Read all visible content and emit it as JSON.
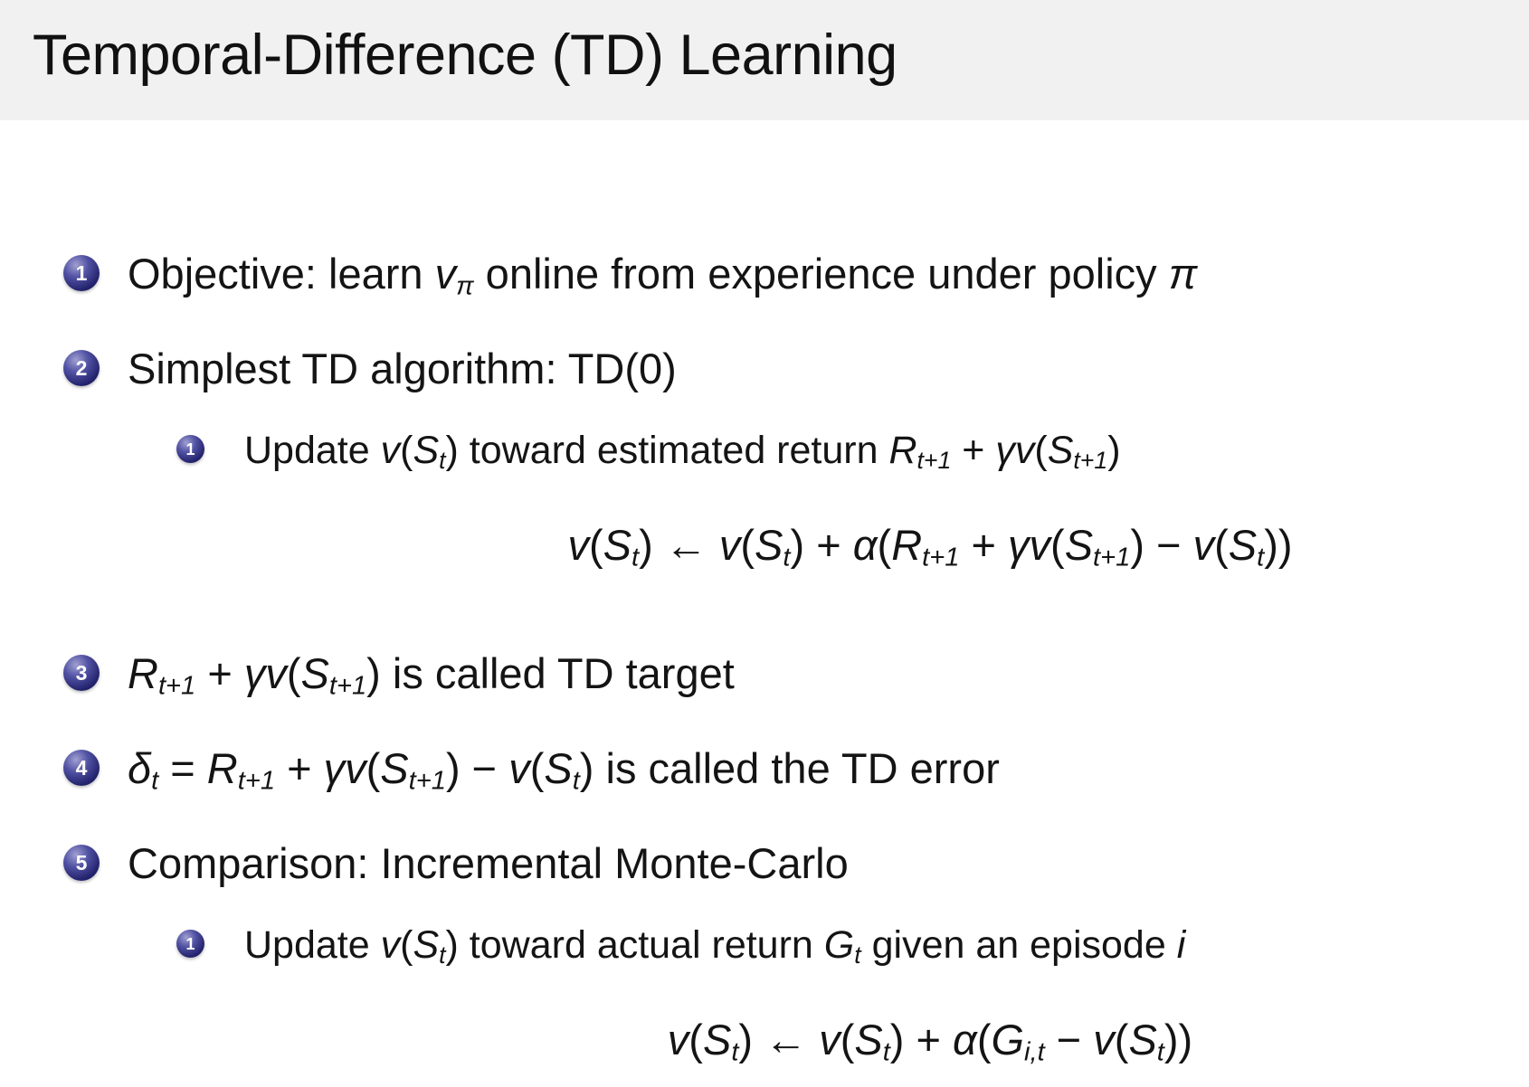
{
  "slide": {
    "title": "Temporal-Difference (TD) Learning"
  },
  "colors": {
    "header_bg": "#f1f1f1",
    "body_bg": "#ffffff",
    "text": "#141414",
    "badge_fill_dark": "#131347",
    "badge_fill_mid": "#23236e",
    "badge_fill_light": "#a0a0d2",
    "badge_text": "#ffffff"
  },
  "items": [
    {
      "type": "item",
      "level": 1,
      "badge": "1",
      "segments": [
        {
          "t": "Objective: learn ",
          "s": "r"
        },
        {
          "t": "v",
          "s": "i"
        },
        {
          "t": "π",
          "s": "isub"
        },
        {
          "t": " online from experience under policy ",
          "s": "r"
        },
        {
          "t": "π",
          "s": "i"
        }
      ]
    },
    {
      "type": "item",
      "level": 1,
      "badge": "2",
      "segments": [
        {
          "t": "Simplest TD algorithm: TD(0)",
          "s": "r"
        }
      ]
    },
    {
      "type": "item",
      "level": 2,
      "badge": "1",
      "segments": [
        {
          "t": "Update ",
          "s": "r"
        },
        {
          "t": "v",
          "s": "i"
        },
        {
          "t": "(",
          "s": "r"
        },
        {
          "t": "S",
          "s": "i"
        },
        {
          "t": "t",
          "s": "isub"
        },
        {
          "t": ")",
          "s": "r"
        },
        {
          "t": " toward estimated return ",
          "s": "r"
        },
        {
          "t": "R",
          "s": "i"
        },
        {
          "t": "t+1",
          "s": "isub"
        },
        {
          "t": " + ",
          "s": "r"
        },
        {
          "t": "γv",
          "s": "i"
        },
        {
          "t": "(",
          "s": "r"
        },
        {
          "t": "S",
          "s": "i"
        },
        {
          "t": "t+1",
          "s": "isub"
        },
        {
          "t": ")",
          "s": "r"
        }
      ]
    },
    {
      "type": "formula",
      "segments": [
        {
          "t": "v",
          "s": "i"
        },
        {
          "t": "(",
          "s": "r"
        },
        {
          "t": "S",
          "s": "i"
        },
        {
          "t": "t",
          "s": "isub"
        },
        {
          "t": ") ← ",
          "s": "r"
        },
        {
          "t": "v",
          "s": "i"
        },
        {
          "t": "(",
          "s": "r"
        },
        {
          "t": "S",
          "s": "i"
        },
        {
          "t": "t",
          "s": "isub"
        },
        {
          "t": ") + ",
          "s": "r"
        },
        {
          "t": "α",
          "s": "i"
        },
        {
          "t": "(",
          "s": "r"
        },
        {
          "t": "R",
          "s": "i"
        },
        {
          "t": "t+1",
          "s": "isub"
        },
        {
          "t": " + ",
          "s": "r"
        },
        {
          "t": "γv",
          "s": "i"
        },
        {
          "t": "(",
          "s": "r"
        },
        {
          "t": "S",
          "s": "i"
        },
        {
          "t": "t+1",
          "s": "isub"
        },
        {
          "t": ") − ",
          "s": "r"
        },
        {
          "t": "v",
          "s": "i"
        },
        {
          "t": "(",
          "s": "r"
        },
        {
          "t": "S",
          "s": "i"
        },
        {
          "t": "t",
          "s": "isub"
        },
        {
          "t": "))",
          "s": "r"
        }
      ]
    },
    {
      "type": "item",
      "level": 1,
      "badge": "3",
      "segments": [
        {
          "t": "R",
          "s": "i"
        },
        {
          "t": "t+1",
          "s": "isub"
        },
        {
          "t": " + ",
          "s": "r"
        },
        {
          "t": "γv",
          "s": "i"
        },
        {
          "t": "(",
          "s": "r"
        },
        {
          "t": "S",
          "s": "i"
        },
        {
          "t": "t+1",
          "s": "isub"
        },
        {
          "t": ")",
          "s": "r"
        },
        {
          "t": " is called TD target",
          "s": "r"
        }
      ]
    },
    {
      "type": "item",
      "level": 1,
      "badge": "4",
      "segments": [
        {
          "t": "δ",
          "s": "i"
        },
        {
          "t": "t",
          "s": "isub"
        },
        {
          "t": " = ",
          "s": "r"
        },
        {
          "t": "R",
          "s": "i"
        },
        {
          "t": "t+1",
          "s": "isub"
        },
        {
          "t": " + ",
          "s": "r"
        },
        {
          "t": "γv",
          "s": "i"
        },
        {
          "t": "(",
          "s": "r"
        },
        {
          "t": "S",
          "s": "i"
        },
        {
          "t": "t+1",
          "s": "isub"
        },
        {
          "t": ") − ",
          "s": "r"
        },
        {
          "t": "v",
          "s": "i"
        },
        {
          "t": "(",
          "s": "r"
        },
        {
          "t": "S",
          "s": "i"
        },
        {
          "t": "t",
          "s": "isub"
        },
        {
          "t": ")",
          "s": "r"
        },
        {
          "t": " is called the TD error",
          "s": "r"
        }
      ]
    },
    {
      "type": "item",
      "level": 1,
      "badge": "5",
      "segments": [
        {
          "t": "Comparison: Incremental Monte-Carlo",
          "s": "r"
        }
      ]
    },
    {
      "type": "item",
      "level": 2,
      "badge": "1",
      "segments": [
        {
          "t": "Update ",
          "s": "r"
        },
        {
          "t": "v",
          "s": "i"
        },
        {
          "t": "(",
          "s": "r"
        },
        {
          "t": "S",
          "s": "i"
        },
        {
          "t": "t",
          "s": "isub"
        },
        {
          "t": ")",
          "s": "r"
        },
        {
          "t": " toward actual return ",
          "s": "r"
        },
        {
          "t": "G",
          "s": "i"
        },
        {
          "t": "t",
          "s": "isub"
        },
        {
          "t": " given an episode ",
          "s": "r"
        },
        {
          "t": "i",
          "s": "i"
        }
      ]
    },
    {
      "type": "formula",
      "segments": [
        {
          "t": "v",
          "s": "i"
        },
        {
          "t": "(",
          "s": "r"
        },
        {
          "t": "S",
          "s": "i"
        },
        {
          "t": "t",
          "s": "isub"
        },
        {
          "t": ") ← ",
          "s": "r"
        },
        {
          "t": "v",
          "s": "i"
        },
        {
          "t": "(",
          "s": "r"
        },
        {
          "t": "S",
          "s": "i"
        },
        {
          "t": "t",
          "s": "isub"
        },
        {
          "t": ") + ",
          "s": "r"
        },
        {
          "t": "α",
          "s": "i"
        },
        {
          "t": "(",
          "s": "r"
        },
        {
          "t": "G",
          "s": "i"
        },
        {
          "t": "i,t",
          "s": "isub"
        },
        {
          "t": " − ",
          "s": "r"
        },
        {
          "t": "v",
          "s": "i"
        },
        {
          "t": "(",
          "s": "r"
        },
        {
          "t": "S",
          "s": "i"
        },
        {
          "t": "t",
          "s": "isub"
        },
        {
          "t": "))",
          "s": "r"
        }
      ]
    }
  ]
}
